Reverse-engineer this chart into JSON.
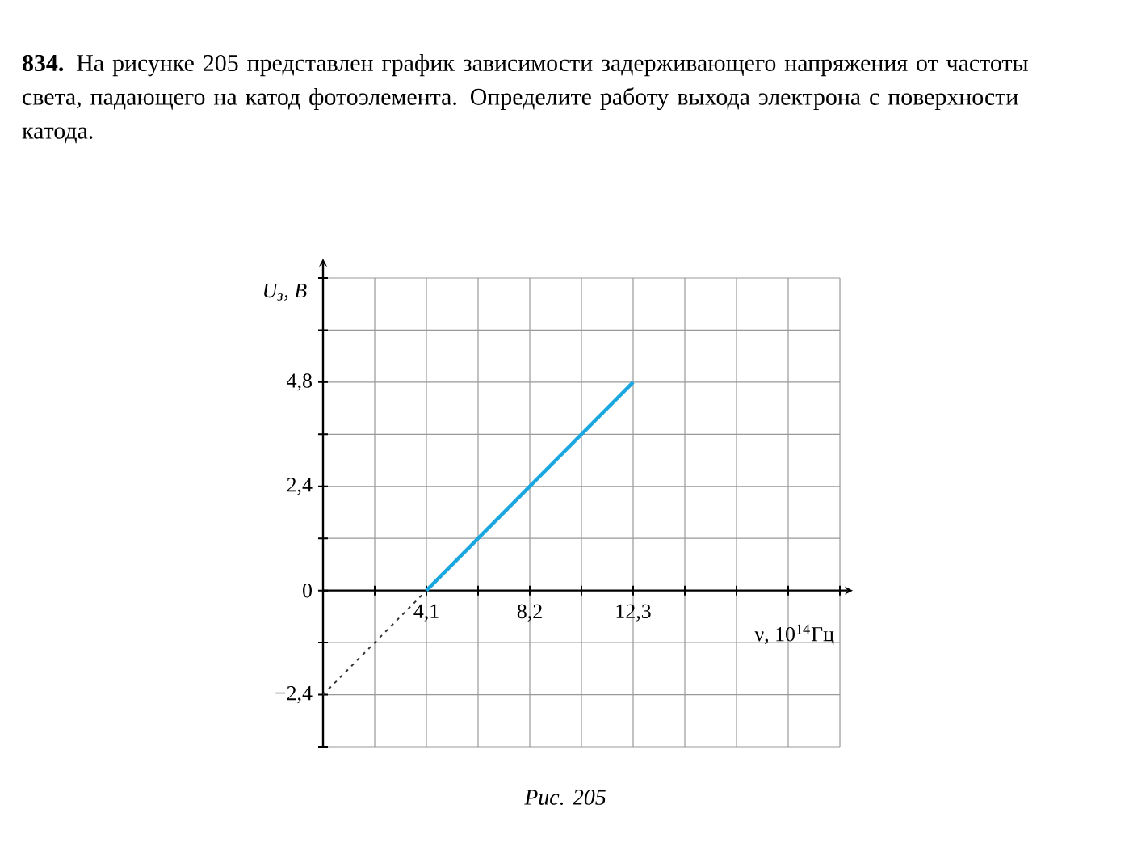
{
  "chart_data": {
    "type": "line",
    "title": "**834.** На рисунке 205 представлен график зависимости задерживающего напряжения от частоты света, падающего на катод фотоэлемента. Определите работу выхода электрона с поверхности катода.",
    "xlabel": "ν, 10$^{14}$Гц",
    "ylabel": "U$_{з}$, В",
    "annotations": [
      "Рис. 205"
    ],
    "series": [
      {
        "x": [
          4.1,
          12.3
        ],
        "values": [
          0,
          4.8
        ],
        "color": "#1aa7e0",
        "line_style": "solid"
      },
      {
        "x": [
          0,
          4.1
        ],
        "values": [
          -2.4,
          0
        ],
        "color": "#333333",
        "line_style": "dotted"
      }
    ],
    "xlim": [
      0,
      20.5
    ],
    "ylim": [
      -3.6,
      7.2
    ],
    "xticks": [
      {
        "value": 0,
        "label": null
      },
      {
        "value": 2.05,
        "label": null
      },
      {
        "value": 4.1,
        "label": "4,1"
      },
      {
        "value": 6.15,
        "label": null
      },
      {
        "value": 8.2,
        "label": "8,2"
      },
      {
        "value": 10.25,
        "label": null
      },
      {
        "value": 12.3,
        "label": "12,3"
      },
      {
        "value": 14.35,
        "label": null
      },
      {
        "value": 16.4,
        "label": null
      },
      {
        "value": 18.45,
        "label": null
      },
      {
        "value": 20.5,
        "label": null
      }
    ],
    "yticks": [
      {
        "value": -3.6,
        "label": null
      },
      {
        "value": -2.4,
        "label": "−2,4"
      },
      {
        "value": -1.2,
        "label": null
      },
      0,
      {
        "value": 1.2,
        "label": null
      },
      {
        "value": 2.4,
        "label": "2,4"
      },
      {
        "value": 3.6,
        "label": null
      },
      {
        "value": 4.8,
        "label": "4,8"
      },
      {
        "value": 6,
        "label": null
      },
      {
        "value": 7.2,
        "label": null
      }
    ],
    "grid": true,
    "marker": "none"
  }
}
